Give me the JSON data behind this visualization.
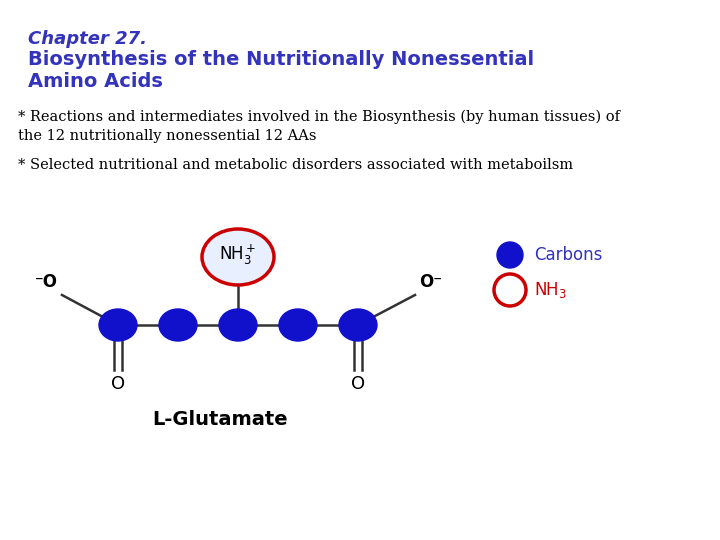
{
  "title_line1": "Chapter 27.",
  "title_line2": "Biosynthesis of the Nutritionally Nonessential",
  "title_line3": "Amino Acids",
  "title_color": "#3333bb",
  "title1_fontstyle": "italic",
  "title1_fontweight": "bold",
  "title23_fontweight": "bold",
  "text_color": "#000000",
  "bg_color": "#ffffff",
  "molecule_label": "L-Glutamate",
  "molecule_label_color": "#000000",
  "carbon_color": "#1111cc",
  "nh3_circle_color": "#cc0000",
  "legend_carbons_label": "Carbons",
  "legend_nh3_label": "NH₃",
  "legend_carbons_color": "#3333bb",
  "legend_nh3_color": "#cc0000",
  "o_label_left": "⁻O",
  "o_label_right": "O⁻"
}
